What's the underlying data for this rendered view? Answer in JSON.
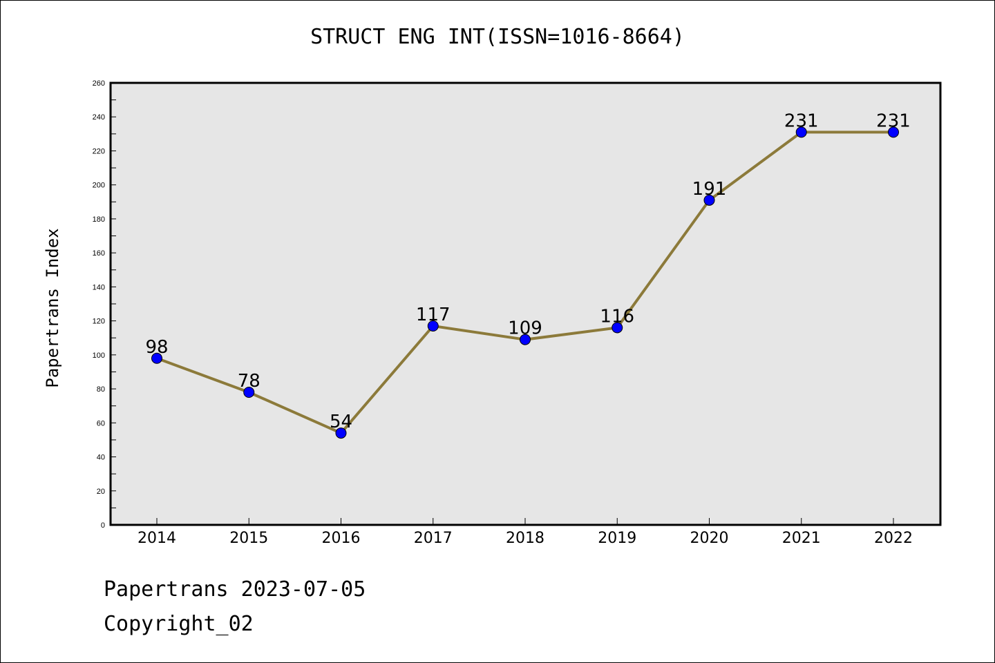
{
  "chart_data": {
    "type": "line",
    "title": "STRUCT ENG INT(ISSN=1016-8664)",
    "ylabel": "Papertrans Index",
    "xlabel": "",
    "categories": [
      "2014",
      "2015",
      "2016",
      "2017",
      "2018",
      "2019",
      "2020",
      "2021",
      "2022"
    ],
    "series": [
      {
        "values": [
          98,
          78,
          54,
          117,
          109,
          116,
          191,
          231,
          231
        ]
      }
    ],
    "data_labels": [
      "98",
      "78",
      "54",
      "117",
      "109",
      "116",
      "191",
      "231",
      "231"
    ],
    "ylim": [
      0,
      260
    ],
    "yticks": [
      0,
      20,
      40,
      60,
      80,
      100,
      120,
      140,
      160,
      180,
      200,
      220,
      240,
      260
    ],
    "grid": false,
    "colors": {
      "line": "#8c7a3a",
      "marker": "#0000ff",
      "plot_bg": "#e6e6e6"
    }
  },
  "footer": {
    "line1": "Papertrans 2023-07-05",
    "line2": "Copyright_02"
  }
}
